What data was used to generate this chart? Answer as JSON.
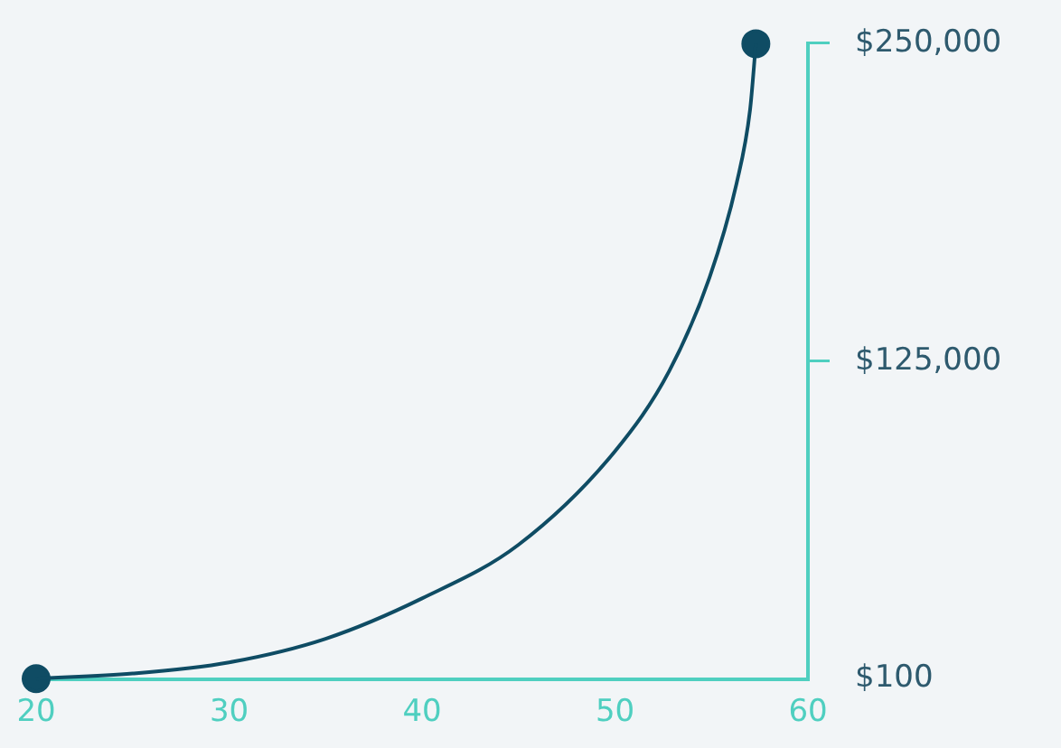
{
  "chart_data": {
    "type": "line",
    "x": [
      20,
      25,
      30,
      35,
      40,
      45,
      50,
      52.8,
      54.9,
      56.3,
      57,
      57.3
    ],
    "series": [
      {
        "type": "line",
        "color": "#0f4c64",
        "marker": "none",
        "values": [
          100,
          2100,
          6500,
          15800,
          31700,
          52800,
          89600,
          121000,
          158000,
          195000,
          224000,
          250000
        ]
      },
      {
        "type": "scatter",
        "color": "#0f4c64",
        "marker": "circle",
        "x": [
          20,
          57.3
        ],
        "values": [
          100,
          250000
        ]
      }
    ],
    "xlim": [
      20,
      60
    ],
    "xticks": [
      20,
      30,
      40,
      50,
      60
    ],
    "ylim": [
      100,
      250000
    ],
    "yticks": [
      {
        "value": 100,
        "label": "$100"
      },
      {
        "value": 125000,
        "label": "$125,000"
      },
      {
        "value": 250000,
        "label": "$250,000"
      }
    ],
    "grid": false,
    "legend": false
  }
}
